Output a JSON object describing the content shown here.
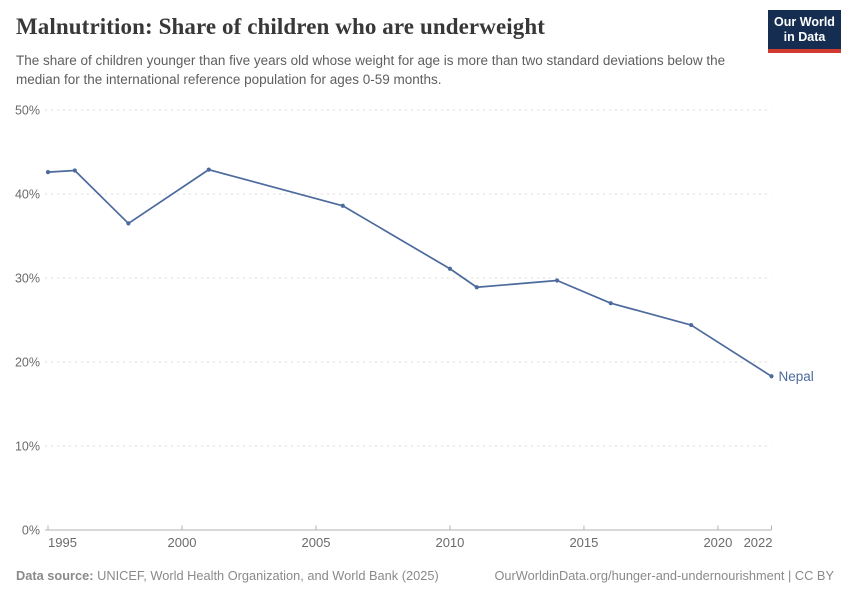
{
  "header": {
    "title": "Malnutrition: Share of children who are underweight",
    "subtitle": "The share of children younger than five years old whose weight for age is more than two standard deviations below the median for the international reference population for ages 0-59 months.",
    "logo_line1": "Our World",
    "logo_line2": "in Data"
  },
  "footer": {
    "datasource_label": "Data source:",
    "datasource_text": "UNICEF, World Health Organization, and World Bank (2025)",
    "attribution": "OurWorldinData.org/hunger-and-undernourishment | CC BY"
  },
  "chart_data": {
    "type": "line",
    "title": "Malnutrition: Share of children who are underweight",
    "unit": "%",
    "xlim": [
      1995,
      2022
    ],
    "ylim": [
      0,
      50
    ],
    "xticks": [
      1995,
      2000,
      2005,
      2010,
      2015,
      2020,
      2022
    ],
    "yticks": [
      0,
      10,
      20,
      30,
      40,
      50
    ],
    "ytick_suffix": "%",
    "grid": "horizontal-dashed",
    "legend_position": "end-of-line-label",
    "series": [
      {
        "name": "Nepal",
        "color": "#4c6a9c",
        "x": [
          1995,
          1996,
          1998,
          2001,
          2006,
          2010,
          2011,
          2014,
          2016,
          2019,
          2022
        ],
        "values": [
          42.6,
          42.8,
          36.5,
          42.9,
          38.6,
          31.1,
          28.9,
          29.7,
          27.0,
          24.4,
          18.3
        ]
      }
    ]
  },
  "colors": {
    "line": "#4c6a9c",
    "grid": "#dcdcdc",
    "axis": "#b3b3b3",
    "tick": "#6b6b6b",
    "title": "#383838",
    "subtitle": "#5e5e5e",
    "footer": "#8a8a8a",
    "logo_bg": "#142d50",
    "logo_red": "#cf3a31"
  }
}
